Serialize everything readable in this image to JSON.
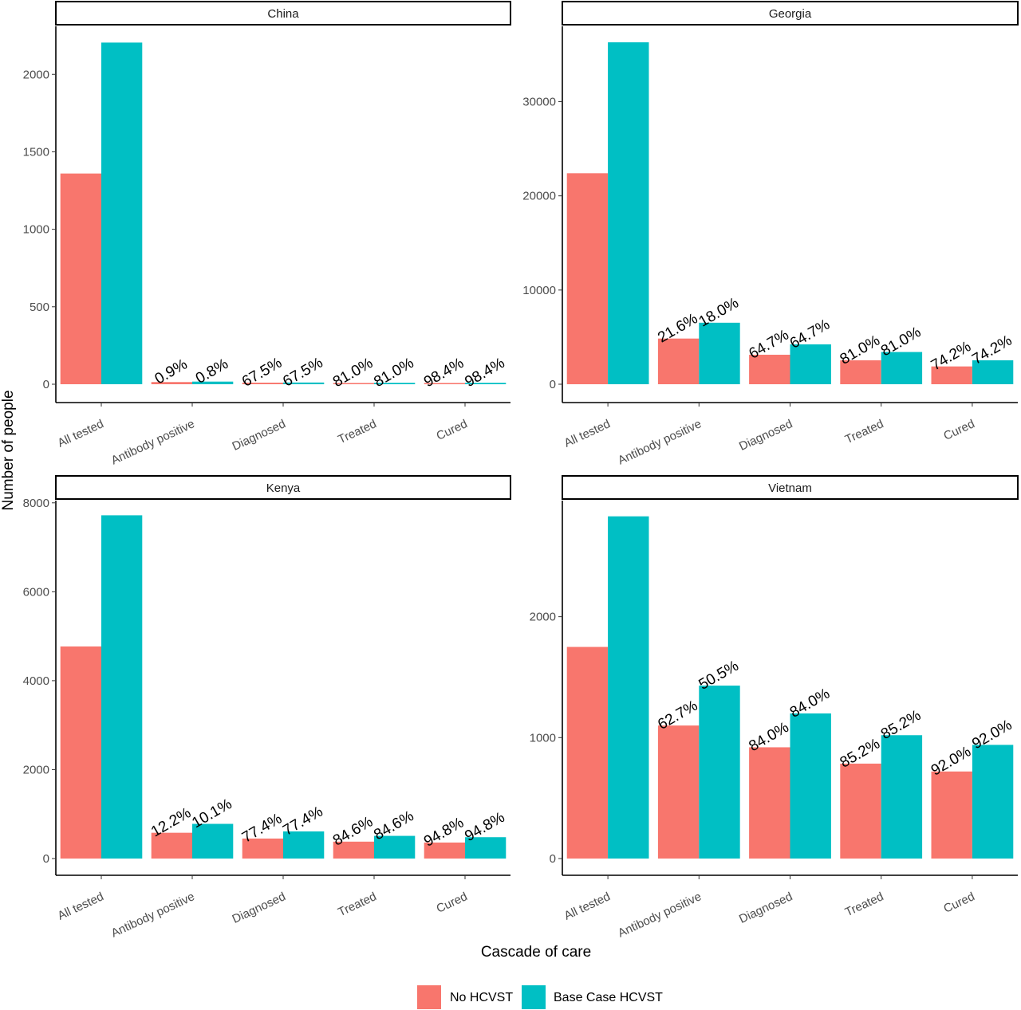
{
  "chart_data": {
    "type": "bar",
    "xlabel": "Cascade of care",
    "ylabel": "Number of people",
    "categories": [
      "All tested",
      "Antibody positive",
      "Diagnosed",
      "Treated",
      "Cured"
    ],
    "legend": {
      "position": "bottom",
      "entries": [
        {
          "name": "No HCVST",
          "color": "#F8766D"
        },
        {
          "name": "Base Case HCVST",
          "color": "#00BFC4"
        }
      ]
    },
    "grid": false,
    "panels": [
      {
        "title": "China",
        "ylim": [
          0,
          2310
        ],
        "yticks": [
          0,
          500,
          1000,
          1500,
          2000
        ],
        "series": [
          {
            "name": "No HCVST",
            "values": [
              1360,
              14,
              10,
              8,
              8
            ],
            "labels": [
              "",
              "0.9%",
              "67.5%",
              "81.0%",
              "98.4%"
            ]
          },
          {
            "name": "Base Case HCVST",
            "values": [
              2205,
              17,
              11,
              9,
              9
            ],
            "labels": [
              "",
              "0.8%",
              "67.5%",
              "81.0%",
              "98.4%"
            ]
          }
        ]
      },
      {
        "title": "Georgia",
        "ylim": [
          0,
          38000
        ],
        "yticks": [
          0,
          10000,
          20000,
          30000
        ],
        "series": [
          {
            "name": "No HCVST",
            "values": [
              22400,
              4850,
              3130,
              2540,
              1890
            ],
            "labels": [
              "",
              "21.6%",
              "64.7%",
              "81.0%",
              "74.2%"
            ]
          },
          {
            "name": "Base Case HCVST",
            "values": [
              36300,
              6530,
              4230,
              3420,
              2540
            ],
            "labels": [
              "",
              "18.0%",
              "64.7%",
              "81.0%",
              "74.2%"
            ]
          }
        ]
      },
      {
        "title": "Kenya",
        "ylim": [
          0,
          8050
        ],
        "yticks": [
          0,
          2000,
          4000,
          6000,
          8000
        ],
        "series": [
          {
            "name": "No HCVST",
            "values": [
              4770,
              580,
              450,
              380,
              360
            ],
            "labels": [
              "",
              "12.2%",
              "77.4%",
              "84.6%",
              "94.8%"
            ]
          },
          {
            "name": "Base Case HCVST",
            "values": [
              7720,
              780,
              610,
              510,
              480
            ],
            "labels": [
              "",
              "10.1%",
              "77.4%",
              "84.6%",
              "94.8%"
            ]
          }
        ]
      },
      {
        "title": "Vietnam",
        "ylim": [
          0,
          2960
        ],
        "yticks": [
          0,
          1000,
          2000
        ],
        "series": [
          {
            "name": "No HCVST",
            "values": [
              1750,
              1100,
              920,
              785,
              720
            ],
            "labels": [
              "",
              "62.7%",
              "84.0%",
              "85.2%",
              "92.0%"
            ]
          },
          {
            "name": "Base Case HCVST",
            "values": [
              2830,
              1430,
              1200,
              1020,
              940
            ],
            "labels": [
              "",
              "50.5%",
              "84.0%",
              "85.2%",
              "92.0%"
            ]
          }
        ]
      }
    ]
  }
}
